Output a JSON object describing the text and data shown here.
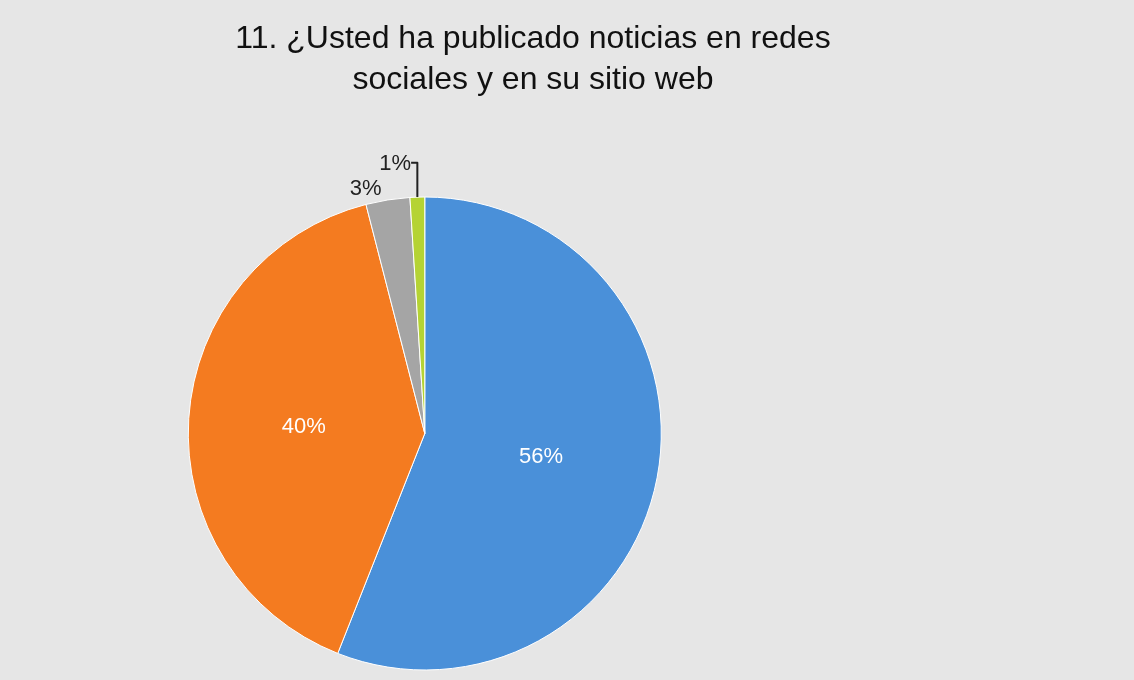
{
  "chart_data": {
    "type": "pie",
    "title": "11. ¿Usted ha publicado noticias en redes sociales y en su sitio web",
    "categories": [
      null,
      null,
      null,
      null
    ],
    "values": [
      56,
      40,
      3,
      1
    ],
    "colors": [
      "#4a90d9",
      "#f47b20",
      "#a5a5a5",
      "#b5d334"
    ],
    "value_labels": [
      "56%",
      "40%",
      "3%",
      "1%"
    ]
  }
}
